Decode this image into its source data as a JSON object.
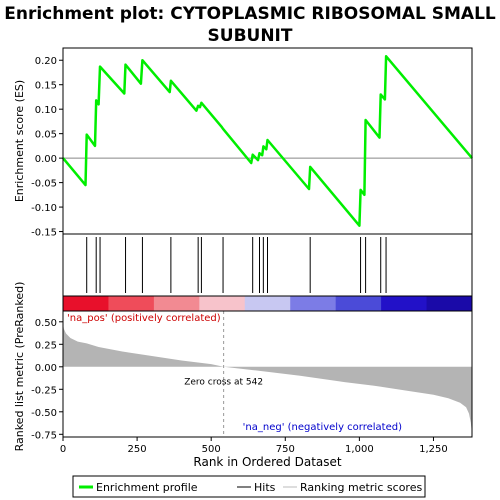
{
  "chart_data": {
    "type": "line",
    "title": "Enrichment plot: CYTOPLASMIC RIBOSOMAL SMALL SUBUNIT",
    "title_lines": [
      "Enrichment plot: CYTOPLASMIC RIBOSOMAL SMALL",
      "SUBUNIT"
    ],
    "xlabel": "Rank in Ordered Dataset",
    "xlim": [
      0,
      1380
    ],
    "x_ticks": [
      0,
      250,
      500,
      750,
      1000,
      1250
    ],
    "x_tick_labels": [
      "0",
      "250",
      "500",
      "750",
      "1,000",
      "1,250"
    ],
    "es_panel": {
      "ylabel": "Enrichment score (ES)",
      "ylim": [
        -0.155,
        0.225
      ],
      "y_ticks": [
        -0.15,
        -0.1,
        -0.05,
        0.0,
        0.05,
        0.1,
        0.15,
        0.2
      ],
      "y_tick_labels": [
        "-0.15",
        "-0.10",
        "-0.05",
        "0.00",
        "0.05",
        "0.10",
        "0.15",
        "0.20"
      ],
      "series_color": "#00ee00",
      "points": [
        [
          0,
          0.0
        ],
        [
          76,
          -0.055
        ],
        [
          80,
          0.048
        ],
        [
          108,
          0.025
        ],
        [
          112,
          0.118
        ],
        [
          120,
          0.11
        ],
        [
          125,
          0.187
        ],
        [
          207,
          0.132
        ],
        [
          211,
          0.191
        ],
        [
          263,
          0.152
        ],
        [
          268,
          0.2
        ],
        [
          360,
          0.135
        ],
        [
          364,
          0.158
        ],
        [
          450,
          0.097
        ],
        [
          456,
          0.107
        ],
        [
          462,
          0.104
        ],
        [
          467,
          0.113
        ],
        [
          535,
          0.064
        ],
        [
          540,
          0.06
        ],
        [
          635,
          -0.01
        ],
        [
          640,
          0.007
        ],
        [
          658,
          -0.004
        ],
        [
          663,
          0.01
        ],
        [
          672,
          0.006
        ],
        [
          676,
          0.024
        ],
        [
          686,
          0.018
        ],
        [
          690,
          0.037
        ],
        [
          830,
          -0.063
        ],
        [
          834,
          -0.018
        ],
        [
          1000,
          -0.138
        ],
        [
          1004,
          -0.065
        ],
        [
          1017,
          -0.075
        ],
        [
          1021,
          0.078
        ],
        [
          1068,
          0.042
        ],
        [
          1072,
          0.13
        ],
        [
          1086,
          0.12
        ],
        [
          1090,
          0.208
        ],
        [
          1380,
          0.0
        ]
      ]
    },
    "hits": {
      "label": "Hits",
      "positions": [
        80,
        112,
        125,
        211,
        268,
        364,
        456,
        467,
        540,
        640,
        663,
        676,
        690,
        834,
        1004,
        1021,
        1072,
        1090
      ]
    },
    "heatmap": {
      "colors": [
        "#e8102b",
        "#ef4c5a",
        "#f28a92",
        "#f7c3cb",
        "#c8c8f2",
        "#7c7ce6",
        "#4b4bd8",
        "#2211c8",
        "#1a0aa8"
      ]
    },
    "rank_panel": {
      "ylabel": "Ranked list metric (PreRanked)",
      "ylim": [
        -0.78,
        0.62
      ],
      "y_ticks": [
        -0.75,
        -0.5,
        -0.25,
        0.0,
        0.25,
        0.5
      ],
      "y_tick_labels": [
        "-0.75",
        "-0.50",
        "-0.25",
        "0.00",
        "0.25",
        "0.50"
      ],
      "zero_cross": 542,
      "zero_cross_label": "Zero cross at 542",
      "pos_label": "'na_pos' (positively correlated)",
      "neg_label": "'na_neg' (negatively correlated)",
      "fill_color": "#b4b4b4",
      "profile": [
        [
          0,
          0.48
        ],
        [
          3,
          0.42
        ],
        [
          10,
          0.37
        ],
        [
          25,
          0.32
        ],
        [
          50,
          0.28
        ],
        [
          80,
          0.26
        ],
        [
          120,
          0.22
        ],
        [
          200,
          0.17
        ],
        [
          300,
          0.12
        ],
        [
          400,
          0.07
        ],
        [
          500,
          0.03
        ],
        [
          542,
          0.0
        ],
        [
          650,
          -0.04
        ],
        [
          800,
          -0.1
        ],
        [
          950,
          -0.17
        ],
        [
          1050,
          -0.21
        ],
        [
          1150,
          -0.26
        ],
        [
          1250,
          -0.31
        ],
        [
          1300,
          -0.35
        ],
        [
          1340,
          -0.4
        ],
        [
          1360,
          -0.45
        ],
        [
          1370,
          -0.52
        ],
        [
          1376,
          -0.62
        ],
        [
          1380,
          -0.74
        ]
      ]
    },
    "legend": {
      "items": [
        {
          "label": "Enrichment profile",
          "color": "#00ee00",
          "kind": "thick-line"
        },
        {
          "label": "Hits",
          "color": "#000000",
          "kind": "line"
        },
        {
          "label": "Ranking metric scores",
          "color": "#bbbbbb",
          "kind": "line"
        }
      ]
    }
  }
}
